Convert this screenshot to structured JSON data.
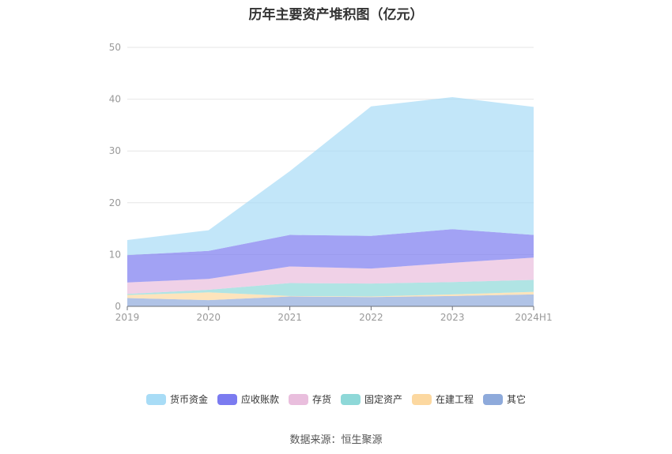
{
  "chart_data": {
    "type": "area",
    "title": "历年主要资产堆积图（亿元）",
    "xlabel": "",
    "ylabel": "",
    "categories": [
      "2019",
      "2020",
      "2021",
      "2022",
      "2023",
      "2024H1"
    ],
    "ylim": [
      0,
      50
    ],
    "yticks": [
      0,
      10,
      20,
      30,
      40,
      50
    ],
    "stacked": true,
    "grid": true,
    "legend_position": "bottom",
    "series": [
      {
        "name": "其它",
        "color": "#8eaadb",
        "values": [
          1.6,
          1.2,
          1.9,
          1.8,
          2.0,
          2.3
        ]
      },
      {
        "name": "在建工程",
        "color": "#fcd8a0",
        "values": [
          0.6,
          1.5,
          0.1,
          0.1,
          0.3,
          0.5
        ]
      },
      {
        "name": "固定资产",
        "color": "#8ed8d8",
        "values": [
          0.2,
          0.5,
          2.5,
          2.5,
          2.4,
          2.3
        ]
      },
      {
        "name": "存货",
        "color": "#e9bedd",
        "values": [
          2.2,
          2.1,
          3.2,
          2.9,
          3.7,
          4.3
        ]
      },
      {
        "name": "应收账款",
        "color": "#7b7bf0",
        "values": [
          5.3,
          5.4,
          6.1,
          6.3,
          6.5,
          4.4
        ]
      },
      {
        "name": "货币资金",
        "color": "#a8dcf6",
        "values": [
          2.9,
          4.0,
          12.3,
          25.0,
          25.5,
          24.7
        ]
      }
    ]
  },
  "legend": {
    "items": [
      "货币资金",
      "应收账款",
      "存货",
      "固定资产",
      "在建工程",
      "其它"
    ]
  },
  "source_text": "数据来源：恒生聚源"
}
